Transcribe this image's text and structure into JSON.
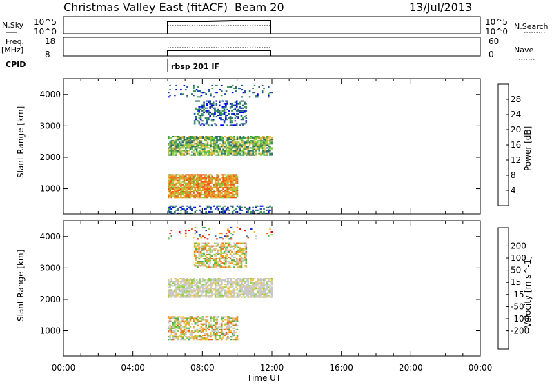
{
  "header": {
    "title": "Christmas Valley East (fitACF)",
    "beam": "Beam 20",
    "date": "13/Jul/2013"
  },
  "sky_panel": {
    "left_label": "N.Sky",
    "right_label": "N.Search",
    "left_ticks": [
      "10^5",
      "10^0"
    ],
    "right_ticks": [
      "10^5",
      "10^0"
    ]
  },
  "freq_panel": {
    "left_label_top": "Freq.",
    "left_label_bottom": "[MHz]",
    "right_label": "Nave",
    "left_ticks": [
      "18",
      "8"
    ],
    "right_ticks": [
      "60",
      "0"
    ]
  },
  "cpid": {
    "label": "CPID",
    "program": "rbsp 201 IF"
  },
  "chart_data": [
    {
      "type": "heatmap",
      "quantity": "Power",
      "ylabel": "Slant Range [km]",
      "xlabel": "Time UT",
      "x_ticks": [
        "00:00",
        "04:00",
        "08:00",
        "12:00",
        "16:00",
        "20:00",
        "00:00"
      ],
      "xlim_hours": [
        0,
        24
      ],
      "data_time_range_hours": [
        6,
        12
      ],
      "ylim": [
        200,
        4500
      ],
      "y_ticks": [
        1000,
        2000,
        3000,
        4000
      ],
      "colorbar": {
        "label": "Power [dB]",
        "ticks": [
          "4",
          "8",
          "12",
          "16",
          "20",
          "24",
          "28"
        ],
        "colors": [
          "#0000ff",
          "#1c4fa8",
          "#2f6e6a",
          "#3a9e52",
          "#7dd136",
          "#e8b53a",
          "#f08d1f",
          "#f05a16",
          "#e82a12",
          "#ff0000"
        ]
      },
      "echo_regions": [
        {
          "range_km": [
            2050,
            2650
          ],
          "time_hours": [
            6.0,
            12.0
          ],
          "level": "moderate"
        },
        {
          "range_km": [
            700,
            1450
          ],
          "time_hours": [
            6.0,
            10.0
          ],
          "level": "strong"
        },
        {
          "range_km": [
            200,
            450
          ],
          "time_hours": [
            6.0,
            12.0
          ],
          "level": "weak"
        },
        {
          "range_km": [
            3000,
            3800
          ],
          "time_hours": [
            7.5,
            10.5
          ],
          "level": "weak"
        },
        {
          "range_km": [
            3900,
            4300
          ],
          "time_hours": [
            6.0,
            12.0
          ],
          "level": "scattered"
        }
      ]
    },
    {
      "type": "heatmap",
      "quantity": "Velocity",
      "ylabel": "Slant Range [km]",
      "xlabel": "Time UT",
      "x_ticks": [
        "00:00",
        "04:00",
        "08:00",
        "12:00",
        "16:00",
        "20:00",
        "00:00"
      ],
      "xlim_hours": [
        0,
        24
      ],
      "data_time_range_hours": [
        6,
        12
      ],
      "ylim": [
        200,
        4500
      ],
      "y_ticks": [
        1000,
        2000,
        3000,
        4000
      ],
      "colorbar": {
        "label": "Velocity [m s^-1]",
        "ticks": [
          "200",
          "100",
          "50",
          "15",
          "-15",
          "-50",
          "-100",
          "-200"
        ],
        "colors": [
          "#2030d0",
          "#2a6fb0",
          "#2f8a6a",
          "#4caf50",
          "#8ed33a",
          "#c8c8c8",
          "#f5c842",
          "#f39a1e",
          "#f06a16",
          "#e83a12",
          "#ff0000"
        ]
      },
      "echo_regions": [
        {
          "range_km": [
            2050,
            2650
          ],
          "time_hours": [
            6.0,
            12.0
          ],
          "level": "ground_scatter"
        },
        {
          "range_km": [
            700,
            1450
          ],
          "time_hours": [
            6.0,
            10.0
          ],
          "level": "mixed"
        },
        {
          "range_km": [
            3000,
            3800
          ],
          "time_hours": [
            7.5,
            10.5
          ],
          "level": "mixed"
        },
        {
          "range_km": [
            3900,
            4300
          ],
          "time_hours": [
            6.0,
            12.0
          ],
          "level": "scattered"
        }
      ]
    }
  ]
}
